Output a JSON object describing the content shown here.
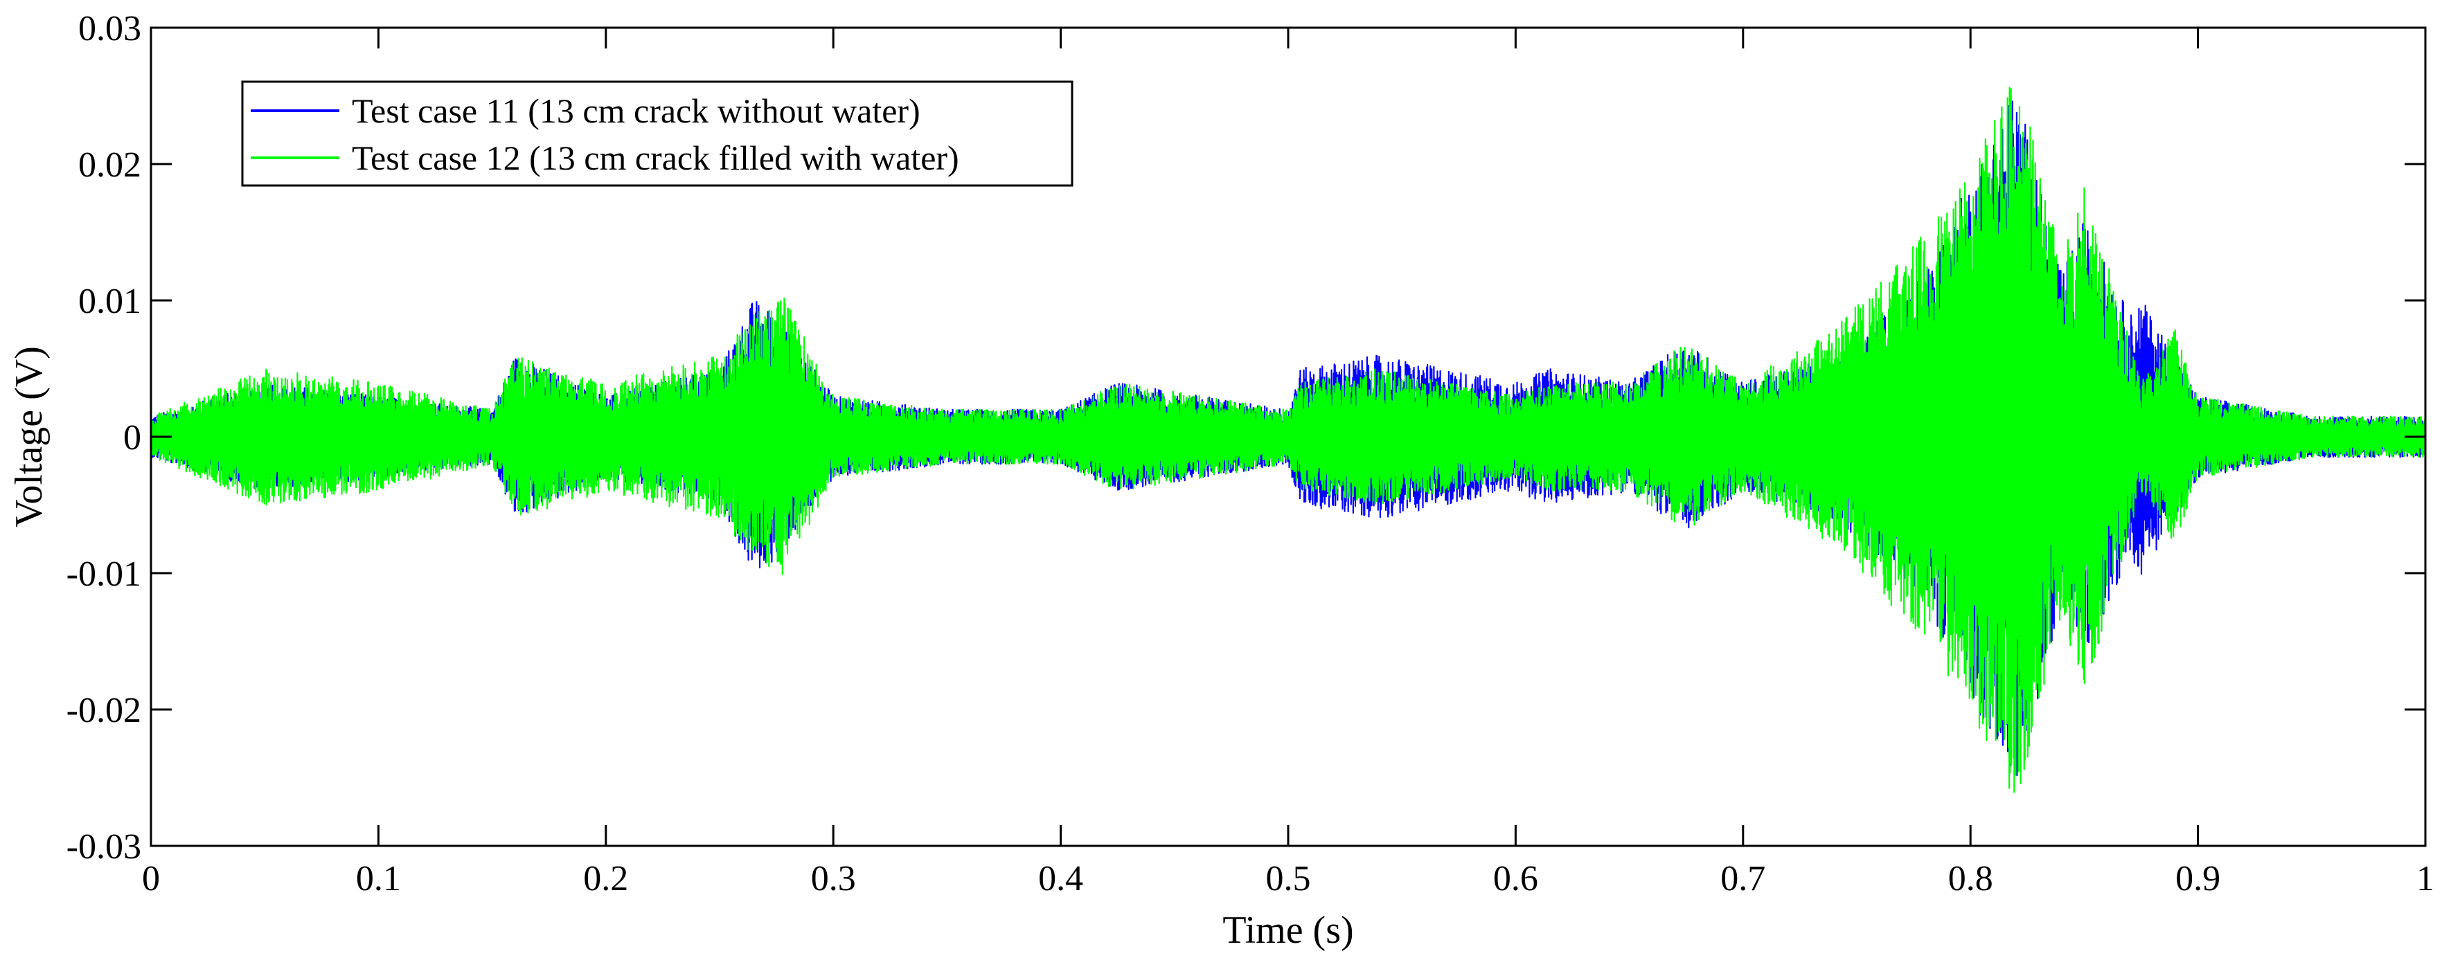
{
  "chart_data": {
    "type": "line",
    "title": "",
    "xlabel": "Time (s)",
    "ylabel": "Voltage (V)",
    "xlim": [
      0,
      1
    ],
    "ylim": [
      -0.03,
      0.03
    ],
    "xticks": [
      0,
      0.1,
      0.2,
      0.3,
      0.4,
      0.5,
      0.6,
      0.7,
      0.8,
      0.9,
      1
    ],
    "xtick_labels": [
      "0",
      "0.1",
      "0.2",
      "0.3",
      "0.4",
      "0.5",
      "0.6",
      "0.7",
      "0.8",
      "0.9",
      "1"
    ],
    "yticks": [
      -0.03,
      -0.02,
      -0.01,
      0,
      0.01,
      0.02,
      0.03
    ],
    "ytick_labels": [
      "-0.03",
      "-0.02",
      "-0.01",
      "0",
      "0.01",
      "0.02",
      "0.03"
    ],
    "grid": false,
    "legend_position": "top-left",
    "series": [
      {
        "name": "Test case 11 (13 cm crack without water)",
        "color": "#0000ff",
        "envelope": {
          "t": [
            0,
            0.05,
            0.1,
            0.15,
            0.16,
            0.2,
            0.25,
            0.265,
            0.275,
            0.3,
            0.35,
            0.4,
            0.425,
            0.5,
            0.505,
            0.54,
            0.6,
            0.615,
            0.65,
            0.675,
            0.7,
            0.74,
            0.78,
            0.8,
            0.82,
            0.84,
            0.85,
            0.87,
            0.875,
            0.89,
            0.9,
            0.95,
            1
          ],
          "amplitude": [
            0.0015,
            0.004,
            0.003,
            0.002,
            0.006,
            0.003,
            0.005,
            0.0102,
            0.009,
            0.003,
            0.002,
            0.002,
            0.004,
            0.002,
            0.005,
            0.006,
            0.004,
            0.005,
            0.004,
            0.007,
            0.004,
            0.006,
            0.012,
            0.019,
            0.026,
            0.012,
            0.016,
            0.009,
            0.0102,
            0.006,
            0.003,
            0.0015,
            0.0015
          ]
        }
      },
      {
        "name": "Test case 12 (13 cm crack filled with water)",
        "color": "#00ff00",
        "envelope": {
          "t": [
            0,
            0.05,
            0.1,
            0.15,
            0.16,
            0.2,
            0.25,
            0.265,
            0.278,
            0.3,
            0.35,
            0.4,
            0.425,
            0.5,
            0.505,
            0.54,
            0.6,
            0.615,
            0.65,
            0.675,
            0.7,
            0.74,
            0.78,
            0.8,
            0.82,
            0.84,
            0.85,
            0.87,
            0.875,
            0.89,
            0.9,
            0.95,
            1
          ],
          "amplitude": [
            0.0015,
            0.005,
            0.004,
            0.002,
            0.006,
            0.004,
            0.006,
            0.009,
            0.0105,
            0.003,
            0.002,
            0.002,
            0.004,
            0.002,
            0.004,
            0.005,
            0.003,
            0.004,
            0.004,
            0.007,
            0.004,
            0.008,
            0.015,
            0.02,
            0.0272,
            0.013,
            0.019,
            0.007,
            0.004,
            0.008,
            0.003,
            0.0015,
            0.0015
          ]
        }
      }
    ]
  }
}
